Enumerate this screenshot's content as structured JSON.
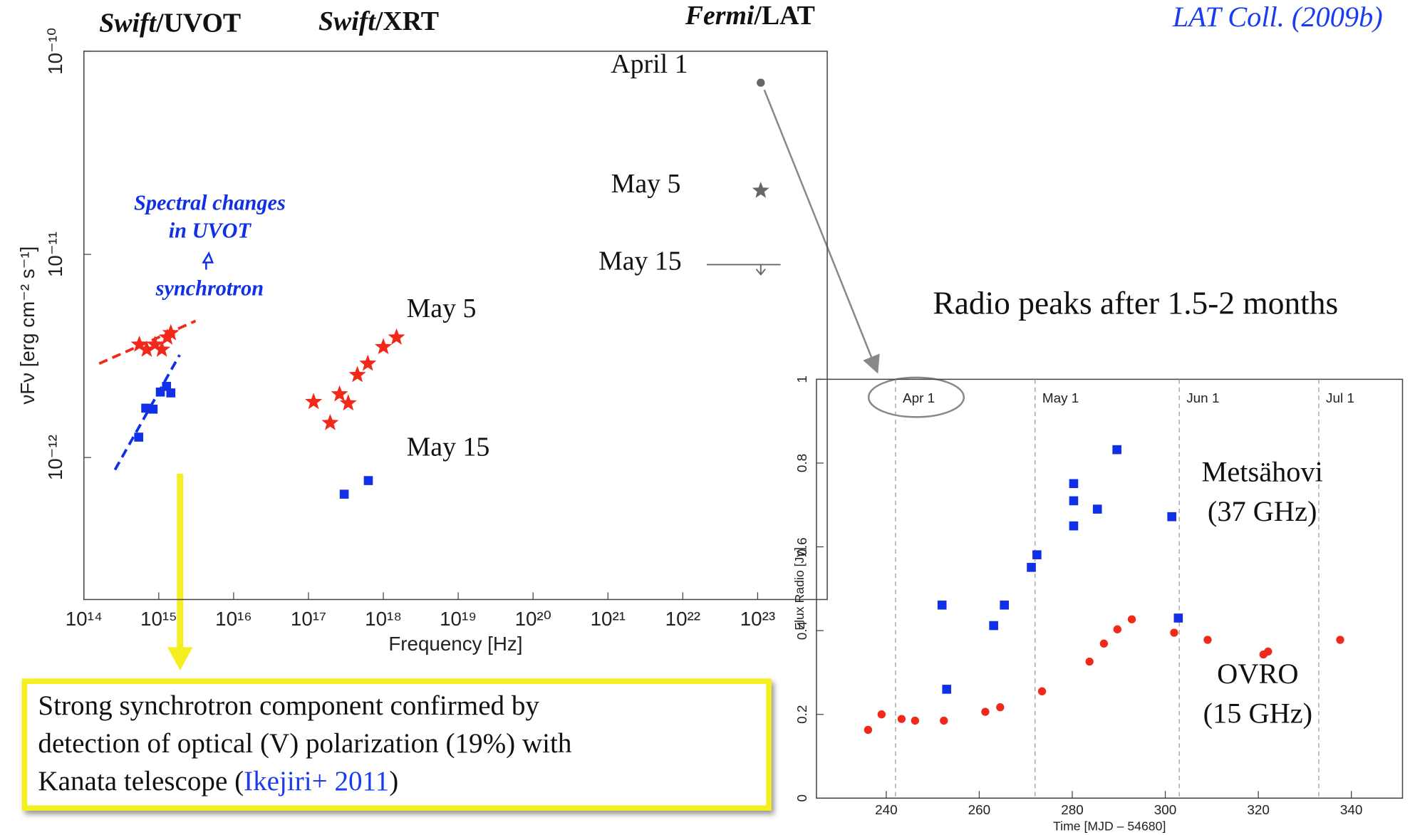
{
  "citation": "LAT Coll.  (2009b)",
  "radio_note": "Radio peaks after 1.5-2 months",
  "callout": {
    "lines": [
      "Strong synchrotron component confirmed by",
      "detection of optical (V) polarization (19%) with",
      "Kanata telescope ("
    ],
    "link": "Ikejiri+ 2011",
    "end": ")"
  },
  "chart_data": [
    {
      "type": "scatter",
      "log_x": true,
      "log_y": true,
      "headers": [
        {
          "italic": "Swift",
          "plain": "/UVOT"
        },
        {
          "italic": "Swift",
          "plain": "/XRT"
        },
        {
          "italic": "Fermi",
          "plain": "/LAT"
        }
      ],
      "x_label": "Frequency [Hz]",
      "y_label": "νFν [erg cm⁻² s⁻¹]",
      "xlim": [
        100000000000000.0,
        8.5e+23
      ],
      "ylim": [
        2e-13,
        1e-10
      ],
      "xticks": [
        {
          "value": 100000000000000.0,
          "label": "10¹⁴"
        },
        {
          "value": 1000000000000000.0,
          "label": "10¹⁵"
        },
        {
          "value": 1e+16,
          "label": "10¹⁶"
        },
        {
          "value": 1e+17,
          "label": "10¹⁷"
        },
        {
          "value": 1e+18,
          "label": "10¹⁸"
        },
        {
          "value": 1e+19,
          "label": "10¹⁹"
        },
        {
          "value": 1e+20,
          "label": "10²⁰"
        },
        {
          "value": 1e+21,
          "label": "10²¹"
        },
        {
          "value": 1e+22,
          "label": "10²²"
        },
        {
          "value": 1e+23,
          "label": "10²³"
        }
      ],
      "yticks": [
        {
          "value": 1e-10,
          "label": "10⁻¹⁰"
        },
        {
          "value": 1e-11,
          "label": "10⁻¹¹"
        },
        {
          "value": 1e-12,
          "label": "10⁻¹²"
        }
      ],
      "annotations": [
        "May 5",
        "May 15",
        "April 1",
        "May 5",
        "May 15"
      ],
      "spectral_note": [
        "Spectral changes",
        "in UVOT",
        "synchrotron"
      ],
      "series": [
        {
          "color": "#f0291a",
          "marker": "star",
          "x": [
            550000000000000.0,
            690000000000000.0,
            890000000000000.0,
            1100000000000000.0,
            1300000000000000.0,
            1450000000000000.0
          ],
          "values": [
            3.6e-12,
            3.4e-12,
            3.6e-12,
            3.4e-12,
            3.9e-12,
            4.1e-12
          ]
        },
        {
          "color": "#1030e8",
          "marker": "square",
          "x": [
            540000000000000.0,
            670000000000000.0,
            840000000000000.0,
            1050000000000000.0,
            1270000000000000.0,
            1450000000000000.0
          ],
          "values": [
            1.26e-12,
            1.75e-12,
            1.73e-12,
            2.1e-12,
            2.24e-12,
            2.08e-12
          ]
        },
        {
          "color": "#f0291a",
          "marker": "star",
          "x": [
            1.17e+17,
            1.95e+17,
            2.6e+17,
            3.4e+17,
            4.5e+17,
            6.2e+17,
            1e+18,
            1.5e+18
          ],
          "values": [
            1.88e-12,
            1.48e-12,
            2.05e-12,
            1.85e-12,
            2.55e-12,
            2.9e-12,
            3.5e-12,
            3.9e-12
          ]
        },
        {
          "color": "#1030e8",
          "marker": "square",
          "x": [
            3e+17,
            6.3e+17
          ],
          "values": [
            6.6e-13,
            7.7e-13
          ]
        },
        {
          "color": "#666666",
          "marker": "circle",
          "x": [
            1.1e+23
          ],
          "values": [
            7e-11
          ]
        },
        {
          "color": "#666666",
          "marker": "star",
          "x": [
            1.1e+23
          ],
          "values": [
            2.06e-11
          ]
        },
        {
          "color": "#666666",
          "marker": "arrow",
          "x": [
            1.1e+23
          ],
          "values": [
            8.9e-12
          ]
        },
        {
          "color": "#f0291a",
          "marker": "dashed",
          "x": [
            160000000000000.0,
            3100000000000000.0
          ],
          "values": [
            2.9e-12,
            4.7e-12
          ]
        },
        {
          "color": "#1030e8",
          "marker": "dashed",
          "x": [
            260000000000000.0,
            1900000000000000.0
          ],
          "values": [
            8.7e-13,
            3.2e-12
          ]
        }
      ]
    },
    {
      "type": "scatter",
      "x_label": "Time [MJD – 54680]",
      "y_label": "Flux Radio [Jy]",
      "xlim": [
        225,
        351
      ],
      "ylim": [
        0,
        1
      ],
      "xticks": [
        240,
        260,
        280,
        300,
        320,
        340
      ],
      "yticks": [
        0,
        0.2,
        0.4,
        0.6,
        0.8,
        1
      ],
      "month_lines": [
        {
          "value": 242,
          "label": "Apr 1"
        },
        {
          "value": 272,
          "label": "May 1"
        },
        {
          "value": 303,
          "label": "Jun 1"
        },
        {
          "value": 333,
          "label": "Jul 1"
        }
      ],
      "annotations": [
        "Metsähovi",
        "(37 GHz)",
        "OVRO",
        "(15 GHz)"
      ],
      "series": [
        {
          "color": "#1030e8",
          "marker": "square",
          "x": [
            252.0,
            253.0,
            263.1,
            265.4,
            271.2,
            272.4,
            280.3,
            280.3,
            280.3,
            285.4,
            289.6,
            301.4,
            302.8
          ],
          "values": [
            0.461,
            0.26,
            0.412,
            0.461,
            0.551,
            0.581,
            0.751,
            0.71,
            0.65,
            0.69,
            0.832,
            0.672,
            0.43
          ]
        },
        {
          "color": "#f0291a",
          "marker": "circle",
          "x": [
            236.1,
            239.0,
            243.3,
            246.2,
            252.4,
            261.3,
            264.5,
            273.5,
            283.7,
            286.8,
            289.7,
            292.8,
            301.9,
            309.1,
            321.1,
            322.1,
            337.6
          ],
          "values": [
            0.163,
            0.2,
            0.189,
            0.185,
            0.185,
            0.206,
            0.217,
            0.255,
            0.326,
            0.369,
            0.403,
            0.427,
            0.395,
            0.378,
            0.343,
            0.35,
            0.378
          ]
        }
      ]
    }
  ]
}
